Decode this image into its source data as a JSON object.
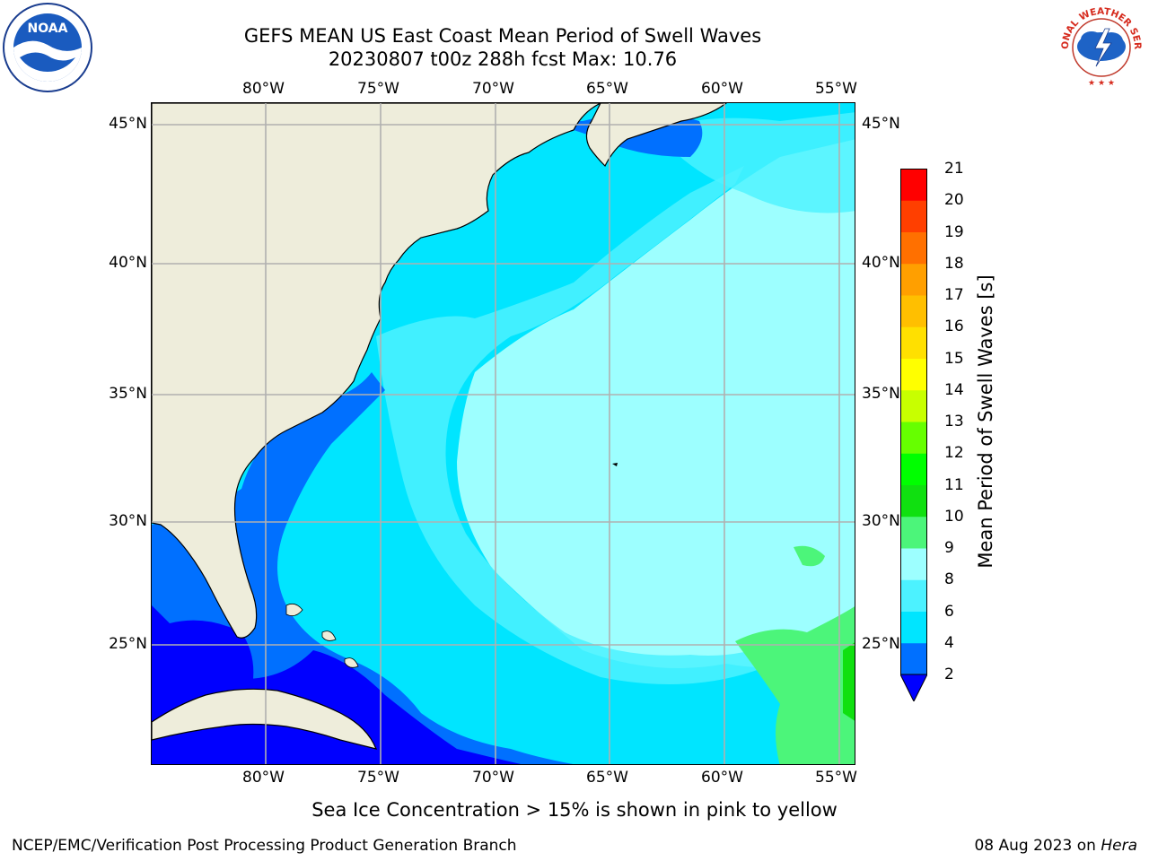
{
  "title": {
    "line1": "GEFS MEAN US East Coast Mean Period of Swell Waves",
    "line2": "20230807 t00z 288h fcst   Max: 10.76"
  },
  "logos": {
    "left": "noaa-logo",
    "left_text": "NOAA",
    "right": "nws-logo",
    "right_text": "NATIONAL WEATHER SERVICE"
  },
  "axes": {
    "lon_labels": [
      "80°W",
      "75°W",
      "70°W",
      "65°W",
      "60°W",
      "55°W"
    ],
    "lat_labels": [
      "45°N",
      "40°N",
      "35°N",
      "30°N",
      "25°N"
    ],
    "lon_range": [
      -85,
      -54
    ],
    "lat_range": [
      20.5,
      46
    ],
    "grid": true
  },
  "colorbar": {
    "label": "Mean Period of Swell Waves [s]",
    "ticks": [
      "21",
      "20",
      "19",
      "18",
      "17",
      "16",
      "15",
      "14",
      "13",
      "12",
      "11",
      "10",
      "9",
      "8",
      "6",
      "4",
      "2"
    ],
    "levels": [
      2,
      4,
      6,
      8,
      9,
      10,
      11,
      12,
      13,
      14,
      15,
      16,
      17,
      18,
      19,
      20,
      21
    ],
    "colors": [
      "#0000ff",
      "#0070ff",
      "#00e5ff",
      "#4cf2ff",
      "#9dffff",
      "#4cf57a",
      "#10e010",
      "#00ff00",
      "#66ff00",
      "#c8ff00",
      "#ffff00",
      "#ffe000",
      "#ffbf00",
      "#ff9f00",
      "#ff7000",
      "#ff3f00",
      "#ff0000"
    ],
    "extend": "min"
  },
  "map": {
    "land_color": "#eeeddb",
    "ocean_base": "#00e5ff"
  },
  "note": "Sea Ice Concentration > 15% is shown in pink to yellow",
  "footer": {
    "left": "NCEP/EMC/Verification Post Processing Product Generation Branch",
    "right_date": "08 Aug 2023 on ",
    "right_host": "Hera"
  }
}
